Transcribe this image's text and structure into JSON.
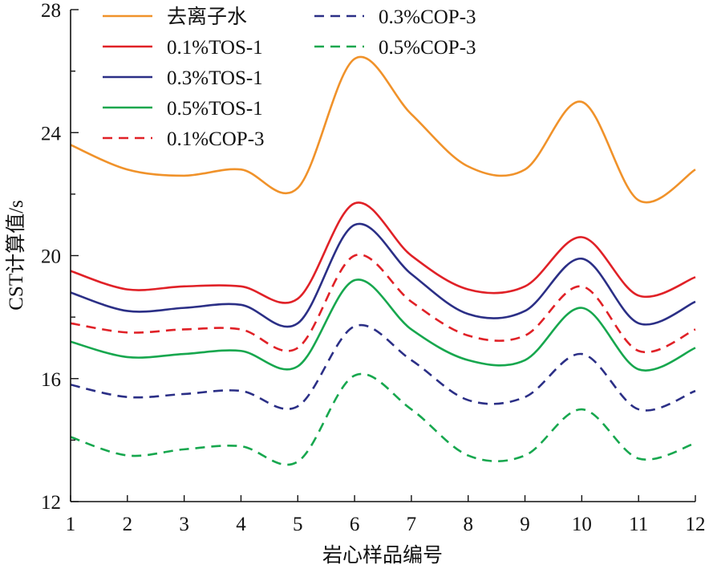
{
  "chart_data": {
    "type": "line",
    "xlabel": "岩心样品编号",
    "ylabel": "CST计算值/s",
    "x": [
      1,
      2,
      3,
      4,
      5,
      6,
      7,
      8,
      9,
      10,
      11,
      12
    ],
    "xlim": [
      1,
      12
    ],
    "ylim": [
      12,
      28
    ],
    "yticks": [
      12,
      16,
      20,
      24,
      28
    ],
    "grid": false,
    "legend_position": "top-left, two columns",
    "series": [
      {
        "name": "去离子水",
        "color": "#f0922a",
        "dash": "solid",
        "values": [
          23.6,
          22.8,
          22.6,
          22.8,
          22.2,
          26.4,
          24.6,
          22.9,
          22.8,
          25.0,
          21.8,
          22.8
        ]
      },
      {
        "name": "0.1%TOS-1",
        "color": "#e02127",
        "dash": "solid",
        "values": [
          19.5,
          18.9,
          19.0,
          19.0,
          18.6,
          21.7,
          20.0,
          18.9,
          19.0,
          20.6,
          18.7,
          19.3
        ]
      },
      {
        "name": "0.3%TOS-1",
        "color": "#2b2f86",
        "dash": "solid",
        "values": [
          18.8,
          18.2,
          18.3,
          18.4,
          17.8,
          21.0,
          19.4,
          18.1,
          18.2,
          19.9,
          17.8,
          18.5
        ]
      },
      {
        "name": "0.5%TOS-1",
        "color": "#17a74e",
        "dash": "solid",
        "values": [
          17.2,
          16.7,
          16.8,
          16.9,
          16.4,
          19.2,
          17.6,
          16.6,
          16.6,
          18.3,
          16.3,
          17.0
        ]
      },
      {
        "name": "0.1%COP-3",
        "color": "#e02127",
        "dash": "dashed",
        "values": [
          17.8,
          17.5,
          17.6,
          17.6,
          17.0,
          20.0,
          18.5,
          17.4,
          17.4,
          19.0,
          16.9,
          17.6
        ]
      },
      {
        "name": "0.3%COP-3",
        "color": "#2b2f86",
        "dash": "dashed",
        "values": [
          15.8,
          15.4,
          15.5,
          15.6,
          15.1,
          17.7,
          16.6,
          15.3,
          15.4,
          16.8,
          15.0,
          15.6
        ]
      },
      {
        "name": "0.5%COP-3",
        "color": "#17a74e",
        "dash": "dashed",
        "values": [
          14.1,
          13.5,
          13.7,
          13.8,
          13.3,
          16.1,
          15.0,
          13.5,
          13.5,
          15.0,
          13.4,
          13.9
        ]
      }
    ]
  }
}
